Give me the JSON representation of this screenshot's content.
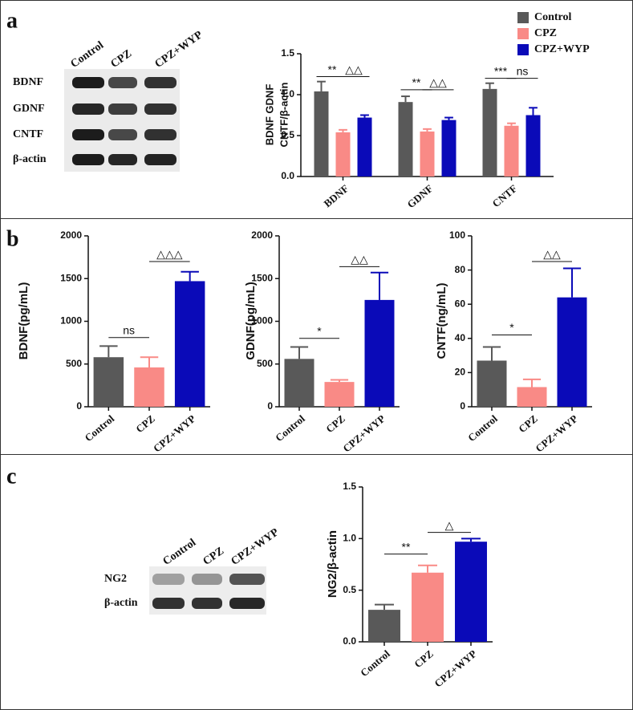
{
  "panels": [
    "a",
    "b",
    "c"
  ],
  "blots": [
    {
      "lanes": [
        "Control",
        "CPZ",
        "CPZ+WYP"
      ],
      "rows": [
        "BDNF",
        "GDNF",
        "CNTF",
        "β-actin"
      ]
    },
    {
      "lanes": [
        "Control",
        "CPZ",
        "CPZ+WYP"
      ],
      "rows": [
        "NG2",
        "β-actin"
      ]
    }
  ],
  "chart_data": [
    {
      "type": "grouped-bar",
      "y_label": [
        "BDNF GDNF",
        "CNTF/β-actin"
      ],
      "categories": [
        "BDNF",
        "GDNF",
        "CNTF"
      ],
      "series": [
        {
          "name": "Control",
          "color": "#595959",
          "values": [
            1.04,
            0.91,
            1.07
          ],
          "errors": [
            0.12,
            0.07,
            0.07
          ]
        },
        {
          "name": "CPZ",
          "color": "#f98a86",
          "values": [
            0.54,
            0.55,
            0.62
          ],
          "errors": [
            0.03,
            0.03,
            0.03
          ]
        },
        {
          "name": "CPZ+WYP",
          "color": "#0a0ab8",
          "values": [
            0.72,
            0.69,
            0.75
          ],
          "errors": [
            0.03,
            0.03,
            0.09
          ]
        }
      ],
      "ylim": [
        0,
        1.5
      ],
      "yticks": [
        {
          "value": 0,
          "label": "0.0"
        },
        {
          "value": 0.5,
          "label": "0.5"
        },
        {
          "value": 1,
          "label": "1.0"
        },
        {
          "value": 1.5,
          "label": "1.5"
        }
      ],
      "annotations": [
        "**",
        "△△",
        "**",
        "△△",
        "***",
        "ns"
      ],
      "legend": "top-right"
    },
    {
      "type": "bar",
      "y_label": "BDNF(pg/mL)",
      "categories": [
        "Control",
        "CPZ",
        "CPZ+WYP"
      ],
      "values": [
        580,
        460,
        1470
      ],
      "errors": [
        130,
        120,
        110
      ],
      "colors": [
        "#595959",
        "#f98a86",
        "#0a0ab8"
      ],
      "ylim": [
        0,
        2000
      ],
      "yticks": [
        0,
        500,
        1000,
        1500,
        2000
      ],
      "annotations": [
        "ns",
        "△△△"
      ]
    },
    {
      "type": "bar",
      "y_label": "GDNF(pg/mL)",
      "categories": [
        "Control",
        "CPZ",
        "CPZ+WYP"
      ],
      "values": [
        560,
        290,
        1250
      ],
      "errors": [
        140,
        25,
        320
      ],
      "colors": [
        "#595959",
        "#f98a86",
        "#0a0ab8"
      ],
      "ylim": [
        0,
        2000
      ],
      "yticks": [
        0,
        500,
        1000,
        1500,
        2000
      ],
      "annotations": [
        "*",
        "△△"
      ]
    },
    {
      "type": "bar",
      "y_label": "CNTF(ng/mL)",
      "categories": [
        "Control",
        "CPZ",
        "CPZ+WYP"
      ],
      "values": [
        27,
        11.5,
        64
      ],
      "errors": [
        8,
        4.5,
        17
      ],
      "colors": [
        "#595959",
        "#f98a86",
        "#0a0ab8"
      ],
      "ylim": [
        0,
        100
      ],
      "yticks": [
        0,
        20,
        40,
        60,
        80,
        100
      ],
      "annotations": [
        "*",
        "△△"
      ]
    },
    {
      "type": "bar",
      "y_label": "NG2/β-actin",
      "categories": [
        "Control",
        "CPZ",
        "CPZ+WYP"
      ],
      "values": [
        0.31,
        0.67,
        0.97
      ],
      "errors": [
        0.05,
        0.07,
        0.03
      ],
      "colors": [
        "#595959",
        "#f98a86",
        "#0a0ab8"
      ],
      "ylim": [
        0,
        1.5
      ],
      "yticks": [
        {
          "value": 0,
          "label": "0.0"
        },
        {
          "value": 0.5,
          "label": "0.5"
        },
        {
          "value": 1,
          "label": "1.0"
        },
        {
          "value": 1.5,
          "label": "1.5"
        }
      ],
      "annotations": [
        "**",
        "△"
      ]
    }
  ]
}
